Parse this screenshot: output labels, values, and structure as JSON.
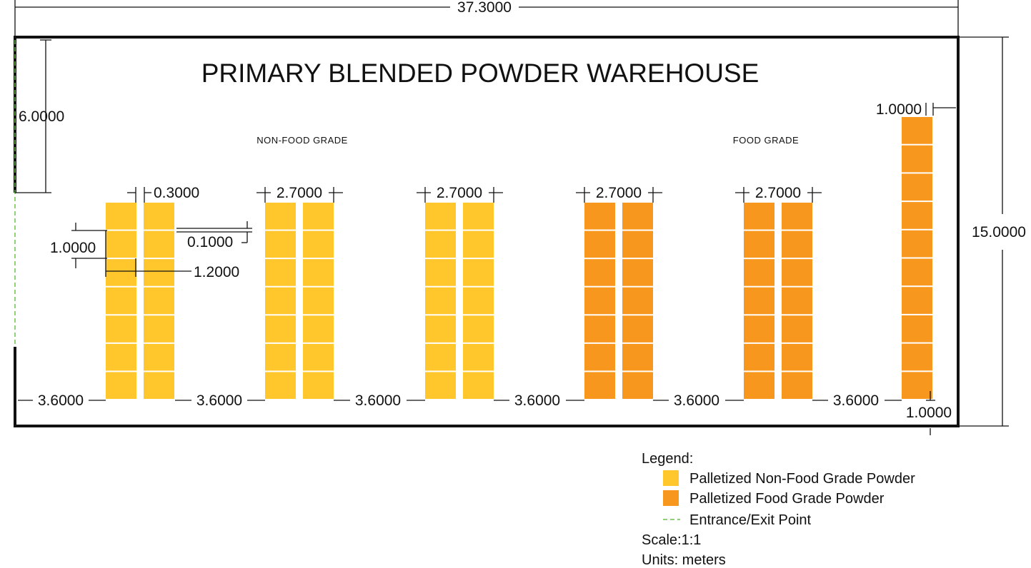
{
  "title": "PRIMARY BLENDED POWDER WAREHOUSE",
  "zones": {
    "non_food": "NON-FOOD GRADE",
    "food": "FOOD GRADE"
  },
  "dimensions": {
    "overall_width": "37.3000",
    "overall_height": "15.0000",
    "entrance_offset": "6.0000",
    "pallet_gap": "0.3000",
    "pallet_spacing": "0.1000",
    "pallet_depth": "1.0000",
    "pallet_width": "1.2000",
    "block_width": "2.7000",
    "aisle": "3.6000",
    "single_row_width": "1.0000",
    "single_row_clearance": "1.0000"
  },
  "legend": {
    "heading": "Legend:",
    "non_food": "Palletized Non-Food Grade Powder",
    "food": "Palletized Food Grade Powder",
    "entrance": "Entrance/Exit Point",
    "scale": "Scale:1:1",
    "units": "Units: meters"
  },
  "colors": {
    "non_food": "#FFC72C",
    "food": "#F7971E",
    "entrance": "#6CC24A",
    "line": "#111111"
  },
  "layout_data": {
    "stacks_per_column": 7,
    "blocks": [
      {
        "grade": "non_food",
        "columns": 2
      },
      {
        "grade": "non_food",
        "columns": 2
      },
      {
        "grade": "non_food",
        "columns": 2
      },
      {
        "grade": "food",
        "columns": 2
      },
      {
        "grade": "food",
        "columns": 2
      },
      {
        "grade": "food",
        "columns": 1,
        "stacks": 10
      }
    ]
  }
}
